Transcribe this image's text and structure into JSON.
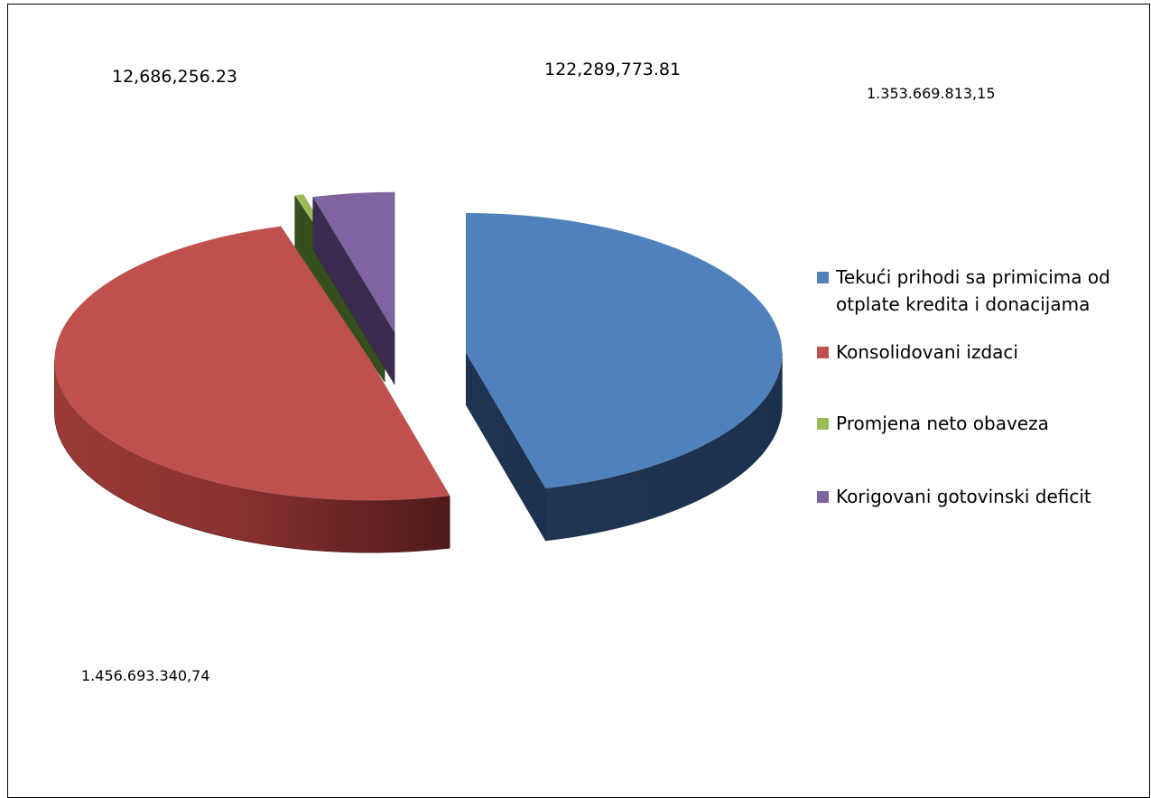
{
  "chart_data": {
    "type": "pie",
    "title": "",
    "series": [
      {
        "name": "Tekući prihodi sa primicima od otplate kredita i donacijama",
        "value": 1353669813.15,
        "label": "1.353.669.813,15",
        "color": "#4F81BD"
      },
      {
        "name": "Konsolidovani izdaci",
        "value": 1456693340.74,
        "label": "1.456.693.340,74",
        "color": "#C0504D"
      },
      {
        "name": "Promjena neto obaveza",
        "value": 12686256.23,
        "label": "12,686,256.23",
        "color": "#9BBB59"
      },
      {
        "name": "Korigovani gotovinski deficit",
        "value": 122289773.81,
        "label": "122,289,773.81",
        "color": "#8064A2"
      }
    ],
    "legend_position": "right",
    "style": "3d-exploded"
  }
}
